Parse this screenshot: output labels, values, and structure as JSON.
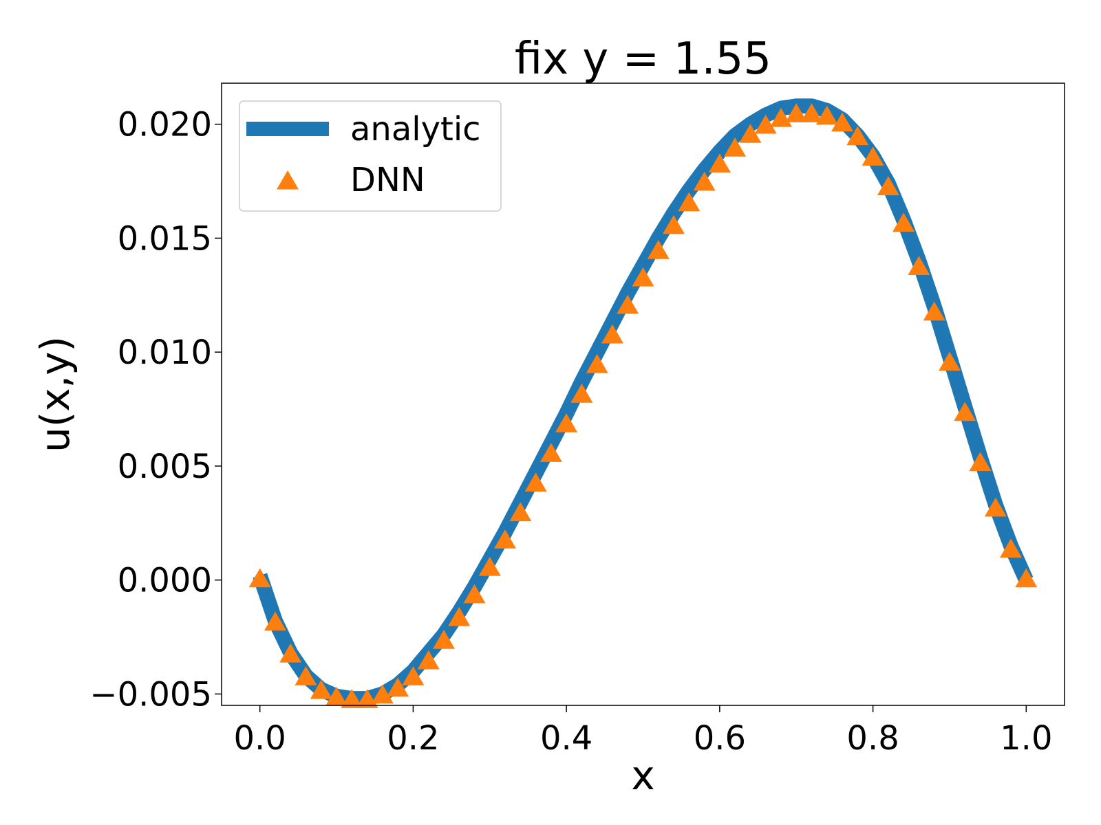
{
  "chart_data": {
    "type": "line",
    "title": "fix y = 1.55",
    "xlabel": "x",
    "ylabel": "u(x,y)",
    "xlim": [
      -0.05,
      1.05
    ],
    "ylim": [
      -0.0055,
      0.0218
    ],
    "xticks": [
      0.0,
      0.2,
      0.4,
      0.6,
      0.8,
      1.0
    ],
    "xtick_labels": [
      "0.0",
      "0.2",
      "0.4",
      "0.6",
      "0.8",
      "1.0"
    ],
    "yticks": [
      -0.005,
      0.0,
      0.005,
      0.01,
      0.015,
      0.02
    ],
    "ytick_labels": [
      "−0.005",
      "0.000",
      "0.005",
      "0.010",
      "0.015",
      "0.020"
    ],
    "grid": false,
    "legend_position": "top-left",
    "x": [
      0.0,
      0.02,
      0.04,
      0.06,
      0.08,
      0.1,
      0.12,
      0.14,
      0.16,
      0.18,
      0.2,
      0.22,
      0.24,
      0.26,
      0.28,
      0.3,
      0.32,
      0.34,
      0.36,
      0.38,
      0.4,
      0.42,
      0.44,
      0.46,
      0.48,
      0.5,
      0.52,
      0.54,
      0.56,
      0.58,
      0.6,
      0.62,
      0.64,
      0.66,
      0.68,
      0.7,
      0.72,
      0.74,
      0.76,
      0.78,
      0.8,
      0.82,
      0.84,
      0.86,
      0.88,
      0.9,
      0.92,
      0.94,
      0.96,
      0.98,
      1.0
    ],
    "series": [
      {
        "name": "analytic",
        "marker": "line",
        "color": "#1f77b4",
        "values": [
          0.0002,
          -0.0018,
          -0.0032,
          -0.0042,
          -0.0048,
          -0.0051,
          -0.0052,
          -0.0052,
          -0.005,
          -0.0046,
          -0.004,
          -0.0032,
          -0.0024,
          -0.0014,
          -0.0003,
          0.0009,
          0.0021,
          0.0034,
          0.0047,
          0.006,
          0.0073,
          0.0087,
          0.01,
          0.0113,
          0.0126,
          0.0138,
          0.015,
          0.0161,
          0.0171,
          0.018,
          0.0188,
          0.0195,
          0.02,
          0.0204,
          0.0207,
          0.0208,
          0.0208,
          0.0206,
          0.0202,
          0.0195,
          0.0186,
          0.0174,
          0.0158,
          0.014,
          0.012,
          0.0098,
          0.0076,
          0.0054,
          0.0033,
          0.0015,
          0.0
        ]
      },
      {
        "name": "DNN",
        "marker": "triangle",
        "color": "#ff7f0e",
        "values": [
          0.0,
          -0.0019,
          -0.0033,
          -0.0043,
          -0.0049,
          -0.0052,
          -0.0053,
          -0.0053,
          -0.0051,
          -0.0048,
          -0.0043,
          -0.0036,
          -0.0027,
          -0.0017,
          -0.0007,
          0.0005,
          0.0017,
          0.0029,
          0.0042,
          0.0055,
          0.0068,
          0.0081,
          0.0094,
          0.0107,
          0.012,
          0.0132,
          0.0144,
          0.0155,
          0.0165,
          0.0174,
          0.0182,
          0.0189,
          0.0195,
          0.0199,
          0.0202,
          0.0204,
          0.0204,
          0.0203,
          0.02,
          0.0194,
          0.0185,
          0.0172,
          0.0156,
          0.0137,
          0.0117,
          0.0095,
          0.0073,
          0.0051,
          0.0031,
          0.0013,
          0.0
        ]
      }
    ]
  }
}
